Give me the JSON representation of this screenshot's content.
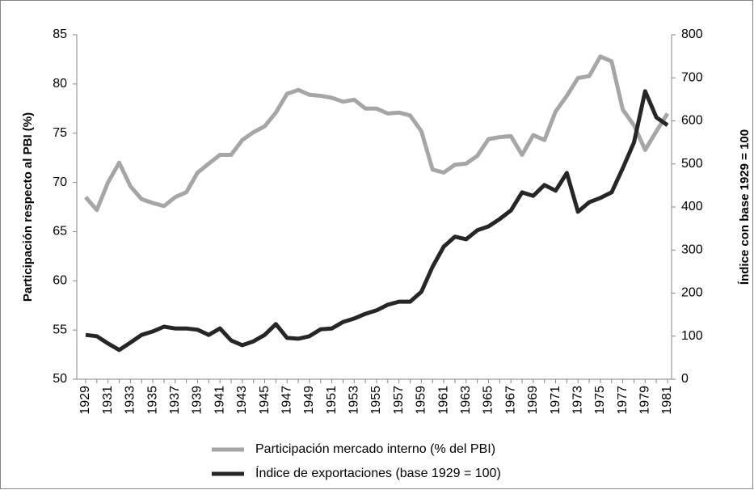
{
  "chart_data": {
    "type": "line",
    "categories": [
      "1929",
      null,
      "1931",
      null,
      "1933",
      null,
      "1935",
      null,
      "1937",
      null,
      "1939",
      null,
      "1941",
      null,
      "1943",
      null,
      "1945",
      null,
      "1947",
      null,
      "1949",
      null,
      "1951",
      null,
      "1953",
      null,
      "1955",
      null,
      "1957",
      null,
      "1959",
      null,
      "1961",
      null,
      "1963",
      null,
      "1965",
      null,
      "1967",
      null,
      "1969",
      null,
      "1971",
      null,
      "1973",
      null,
      "1975",
      null,
      "1977",
      null,
      "1979",
      null,
      "1981"
    ],
    "ylabel": "Participación respecto al PBI (%)",
    "y2label": "Índice con base 1929 = 100",
    "ylim": [
      50,
      85
    ],
    "yticks": [
      50,
      55,
      60,
      65,
      70,
      75,
      80,
      85
    ],
    "y2lim": [
      0,
      800
    ],
    "y2ticks": [
      0,
      100,
      200,
      300,
      400,
      500,
      600,
      700,
      800
    ],
    "legend": "bottom",
    "series": [
      {
        "name": "Participación mercado interno (% del PBI)",
        "color": "#a6a6a6",
        "values": [
          68.5,
          67.2,
          70.0,
          72.0,
          69.6,
          68.3,
          67.9,
          67.6,
          68.5,
          69.0,
          71.0,
          71.9,
          72.8,
          72.8,
          74.3,
          75.1,
          75.7,
          77.1,
          79.0,
          79.4,
          78.9,
          78.8,
          78.6,
          78.2,
          78.4,
          77.5,
          77.5,
          77.0,
          77.1,
          76.8,
          75.2,
          71.3,
          71.0,
          71.8,
          71.9,
          72.7,
          74.4,
          74.6,
          74.7,
          72.8,
          74.8,
          74.3,
          77.2,
          78.8,
          80.6,
          80.8,
          82.8,
          82.3,
          77.4,
          75.8,
          73.3,
          75.2,
          77.0
        ]
      },
      {
        "name": "Índice de exportaciones (base 1929 = 100)",
        "color": "#262626",
        "axis": "y2",
        "values": [
          103,
          100,
          83,
          68,
          85,
          103,
          111,
          122,
          118,
          118,
          115,
          103,
          118,
          90,
          79,
          88,
          103,
          128,
          96,
          94,
          100,
          116,
          118,
          133,
          141,
          152,
          160,
          173,
          180,
          180,
          203,
          261,
          308,
          331,
          325,
          346,
          355,
          372,
          392,
          434,
          426,
          451,
          438,
          479,
          389,
          411,
          421,
          434,
          490,
          550,
          669,
          608,
          590
        ]
      }
    ]
  }
}
